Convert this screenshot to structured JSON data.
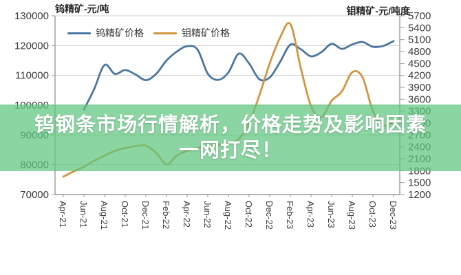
{
  "overlay": {
    "line1": "钨钢条市场行情解析，价格走势及影响因素",
    "line2": "一网打尽！",
    "background_rgba": "rgba(94,197,128,0.73)",
    "text_color": "#ffffff"
  },
  "chart_data": {
    "type": "line",
    "x": [
      "Apr-21",
      "May-21",
      "Jun-21",
      "Jul-21",
      "Aug-21",
      "Sep-21",
      "Oct-21",
      "Nov-21",
      "Dec-21",
      "Jan-22",
      "Feb-22",
      "Mar-22",
      "Apr-22",
      "May-22",
      "Jun-22",
      "Jul-22",
      "Aug-22",
      "Sep-22",
      "Oct-22",
      "Nov-22",
      "Dec-22",
      "Jan-23",
      "Feb-23",
      "Mar-23",
      "Apr-23",
      "May-23",
      "Jun-23",
      "Jul-23",
      "Aug-23",
      "Sep-23",
      "Oct-23",
      "Nov-23",
      "Dec-23"
    ],
    "x_tick_labels": [
      "Apr-21",
      "Jun-21",
      "Aug-21",
      "Oct-21",
      "Dec-21",
      "Feb-22",
      "Apr-22",
      "Jun-22",
      "Aug-22",
      "Oct-22",
      "Dec-22",
      "Feb-23",
      "Apr-23",
      "Jun-23",
      "Aug-23",
      "Oct-23",
      "Dec-23"
    ],
    "series": [
      {
        "name": "钨精矿价格",
        "axis": "left",
        "color": "#4b76a0",
        "values": [
          null,
          null,
          98500,
          105500,
          113500,
          110500,
          111800,
          110300,
          108400,
          110500,
          115000,
          118000,
          119800,
          118700,
          110600,
          108500,
          111000,
          117300,
          114000,
          108700,
          109300,
          114500,
          120300,
          118800,
          116400,
          117800,
          120600,
          118900,
          120400,
          121200,
          119600,
          119900,
          121500
        ]
      },
      {
        "name": "钼精矿价格",
        "axis": "right",
        "color": "#d6933f",
        "values": [
          1650,
          1780,
          1900,
          2050,
          2180,
          2300,
          2370,
          2420,
          2430,
          2250,
          1960,
          2180,
          2300,
          2370,
          2420,
          2450,
          2500,
          2600,
          3000,
          3700,
          4500,
          5150,
          5490,
          4400,
          3430,
          3150,
          3560,
          3800,
          4280,
          4150,
          3300,
          2950,
          3020
        ]
      }
    ],
    "left_axis": {
      "title": "钨精矿-元/吨",
      "min": 70000,
      "max": 130000,
      "step": 10000
    },
    "right_axis": {
      "title": "钼精矿-元/吨度",
      "min": 1200,
      "max": 5700,
      "step": 300
    },
    "legend_position": "top",
    "grid": true
  },
  "colors": {
    "grid": "#cfcfcf",
    "axis": "#9b9b9b",
    "tick_text": "#3c3c3c",
    "axis_title_text": "#262626"
  }
}
